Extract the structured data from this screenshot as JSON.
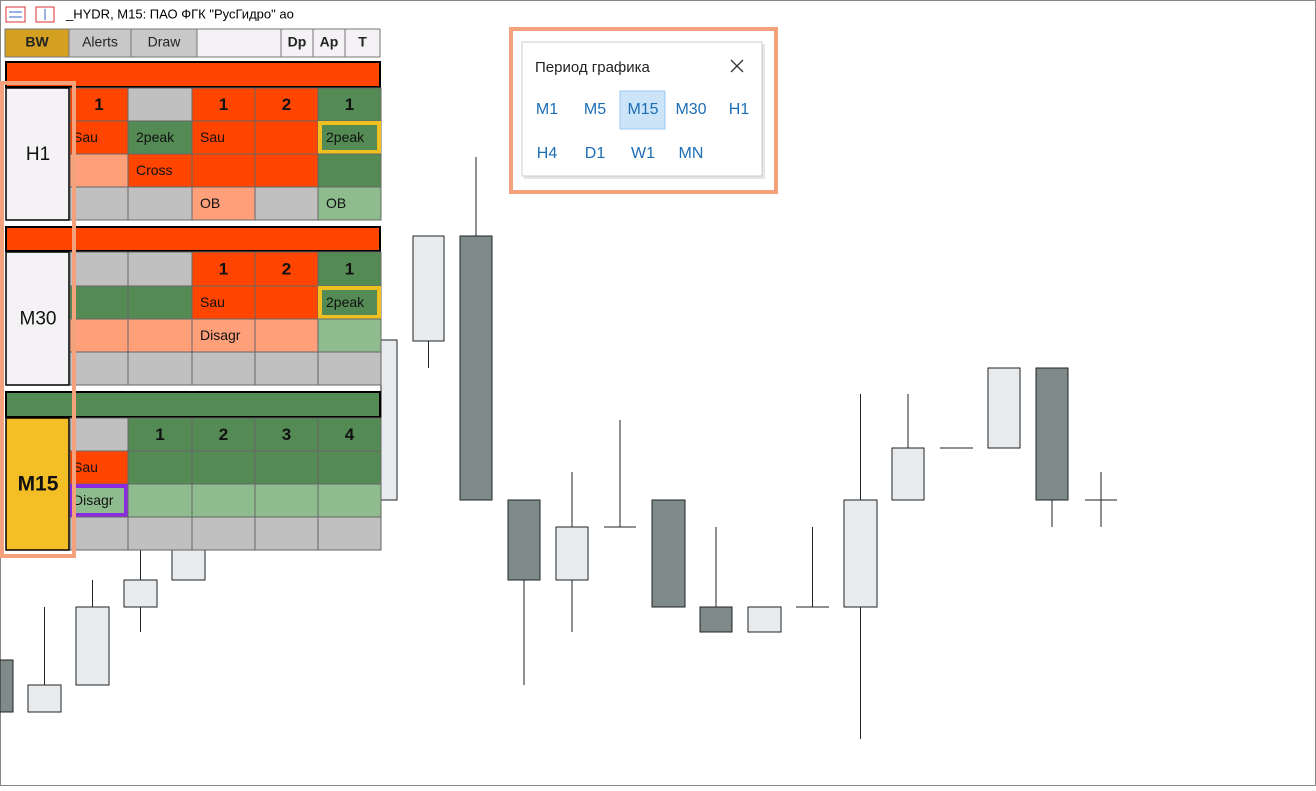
{
  "window": {
    "title": "_HYDR, M15:  ПАО ФГК \"РусГидро\" ао"
  },
  "toolbar": [
    "BW",
    "Alerts",
    "Draw",
    "Dp",
    "Ap",
    "T"
  ],
  "panels": [
    {
      "label": "H1",
      "rows": [
        [
          "1",
          null,
          "1",
          "2",
          "1"
        ],
        [
          "Sau",
          "2peak",
          "Sau",
          null,
          "2peak"
        ],
        [
          null,
          "Cross",
          null,
          null,
          null
        ],
        [
          null,
          null,
          "OB",
          null,
          "OB"
        ]
      ]
    },
    {
      "label": "M30",
      "rows": [
        [
          null,
          null,
          "1",
          "2",
          "1"
        ],
        [
          null,
          null,
          "Sau",
          null,
          "2peak"
        ],
        [
          null,
          null,
          "Disagr",
          null,
          null
        ],
        [
          null,
          null,
          null,
          null,
          null
        ]
      ]
    },
    {
      "label": "M15",
      "rows": [
        [
          null,
          "1",
          "2",
          "3",
          "4"
        ],
        [
          "Sau",
          null,
          null,
          null,
          null
        ],
        [
          "Disagr",
          null,
          null,
          null,
          null
        ],
        [
          null,
          null,
          null,
          null,
          null
        ]
      ]
    }
  ],
  "period_dialog": {
    "title": "Период графика",
    "periods": [
      "M1",
      "M5",
      "M15",
      "M30",
      "H1",
      "H4",
      "D1",
      "W1",
      "MN"
    ],
    "selected": "M15"
  }
}
